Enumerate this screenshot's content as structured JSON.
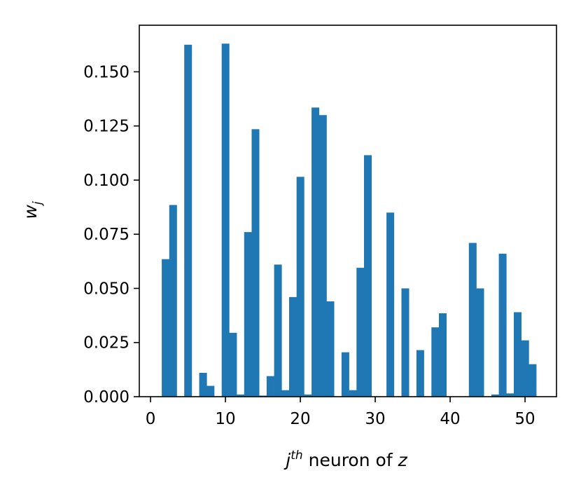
{
  "chart_data": {
    "type": "bar",
    "xlabel_parts": {
      "base": "j",
      "sup": "th",
      "rest": " neuron of ",
      "var": "z"
    },
    "ylabel_parts": {
      "base": "w",
      "sub": "j"
    },
    "xlim": [
      -1.5,
      54.2
    ],
    "ylim": [
      0,
      0.1715
    ],
    "x_ticks": [
      0,
      10,
      20,
      30,
      40,
      50
    ],
    "x_tick_labels": [
      "0",
      "10",
      "20",
      "30",
      "40",
      "50"
    ],
    "y_ticks": [
      0,
      0.025,
      0.05,
      0.075,
      0.1,
      0.125,
      0.15
    ],
    "y_tick_labels": [
      "0.000",
      "0.025",
      "0.050",
      "0.075",
      "0.100",
      "0.125",
      "0.150"
    ],
    "bar_color": "#1f77b4",
    "grid": false,
    "bars": [
      {
        "x": 2,
        "value": 0.0635
      },
      {
        "x": 3,
        "value": 0.0885
      },
      {
        "x": 5,
        "value": 0.1625
      },
      {
        "x": 7,
        "value": 0.011
      },
      {
        "x": 8,
        "value": 0.005
      },
      {
        "x": 10,
        "value": 0.163
      },
      {
        "x": 11,
        "value": 0.0295
      },
      {
        "x": 12,
        "value": 0.001
      },
      {
        "x": 13,
        "value": 0.076
      },
      {
        "x": 14,
        "value": 0.1235
      },
      {
        "x": 15,
        "value": 0.0005
      },
      {
        "x": 16,
        "value": 0.0095
      },
      {
        "x": 17,
        "value": 0.061
      },
      {
        "x": 18,
        "value": 0.003
      },
      {
        "x": 19,
        "value": 0.046
      },
      {
        "x": 20,
        "value": 0.1015
      },
      {
        "x": 21,
        "value": 0.001
      },
      {
        "x": 22,
        "value": 0.1335
      },
      {
        "x": 23,
        "value": 0.13
      },
      {
        "x": 24,
        "value": 0.044
      },
      {
        "x": 26,
        "value": 0.0205
      },
      {
        "x": 27,
        "value": 0.003
      },
      {
        "x": 28,
        "value": 0.0595
      },
      {
        "x": 29,
        "value": 0.1115
      },
      {
        "x": 32,
        "value": 0.085
      },
      {
        "x": 34,
        "value": 0.05
      },
      {
        "x": 36,
        "value": 0.0215
      },
      {
        "x": 38,
        "value": 0.032
      },
      {
        "x": 39,
        "value": 0.0385
      },
      {
        "x": 43,
        "value": 0.071
      },
      {
        "x": 44,
        "value": 0.05
      },
      {
        "x": 46,
        "value": 0.001
      },
      {
        "x": 47,
        "value": 0.066
      },
      {
        "x": 48,
        "value": 0.0015
      },
      {
        "x": 49,
        "value": 0.039
      },
      {
        "x": 50,
        "value": 0.026
      },
      {
        "x": 51,
        "value": 0.015
      }
    ]
  }
}
